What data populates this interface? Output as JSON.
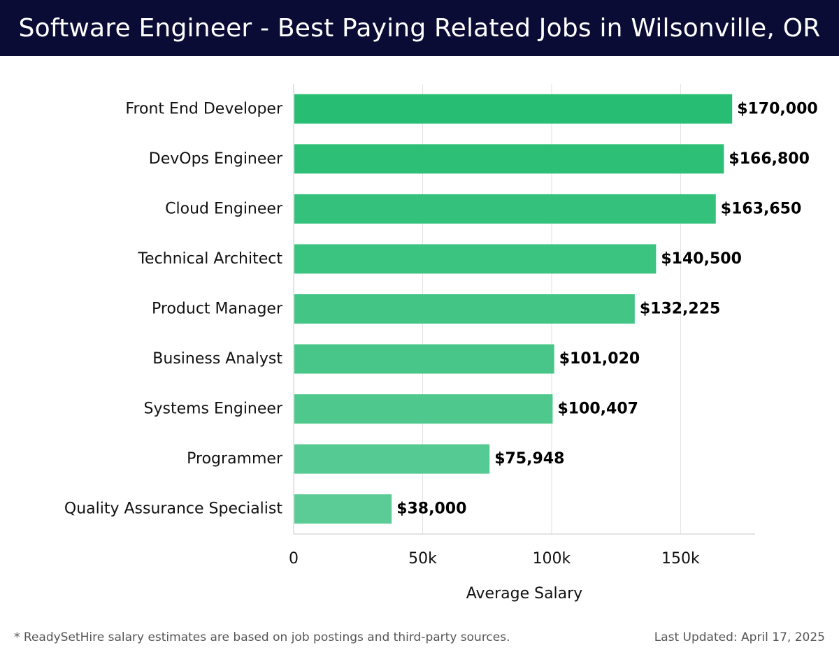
{
  "header": {
    "title": "Software Engineer - Best Paying Related Jobs in Wilsonville, OR"
  },
  "footer": {
    "note": "* ReadySetHire salary estimates are based on job postings and third-party sources.",
    "updated": "Last Updated: April 17, 2025"
  },
  "chart_data": {
    "type": "bar",
    "orientation": "horizontal",
    "title": "Software Engineer - Best Paying Related Jobs in Wilsonville, OR",
    "xlabel": "Average Salary",
    "ylabel": "",
    "xlim": [
      0,
      180000
    ],
    "grid": true,
    "categories": [
      "Front End Developer",
      "DevOps Engineer",
      "Cloud Engineer",
      "Technical Architect",
      "Product Manager",
      "Business Analyst",
      "Systems Engineer",
      "Programmer",
      "Quality Assurance Specialist"
    ],
    "values": [
      170000,
      166800,
      163650,
      140500,
      132225,
      101020,
      100407,
      75948,
      38000
    ],
    "value_labels": [
      "$170,000",
      "$166,800",
      "$163,650",
      "$140,500",
      "$132,225",
      "$101,020",
      "$100,407",
      "$75,948",
      "$38,000"
    ],
    "x_ticks": [
      0,
      50000,
      100000,
      150000
    ],
    "x_tick_labels": [
      "0",
      "50k",
      "100k",
      "150k"
    ],
    "colors": {
      "bar_start": "#27bd72",
      "bar_end": "#5ccc97",
      "grid": "#e2e2e2",
      "axis": "#c8c8c8",
      "label": "#111111"
    }
  }
}
